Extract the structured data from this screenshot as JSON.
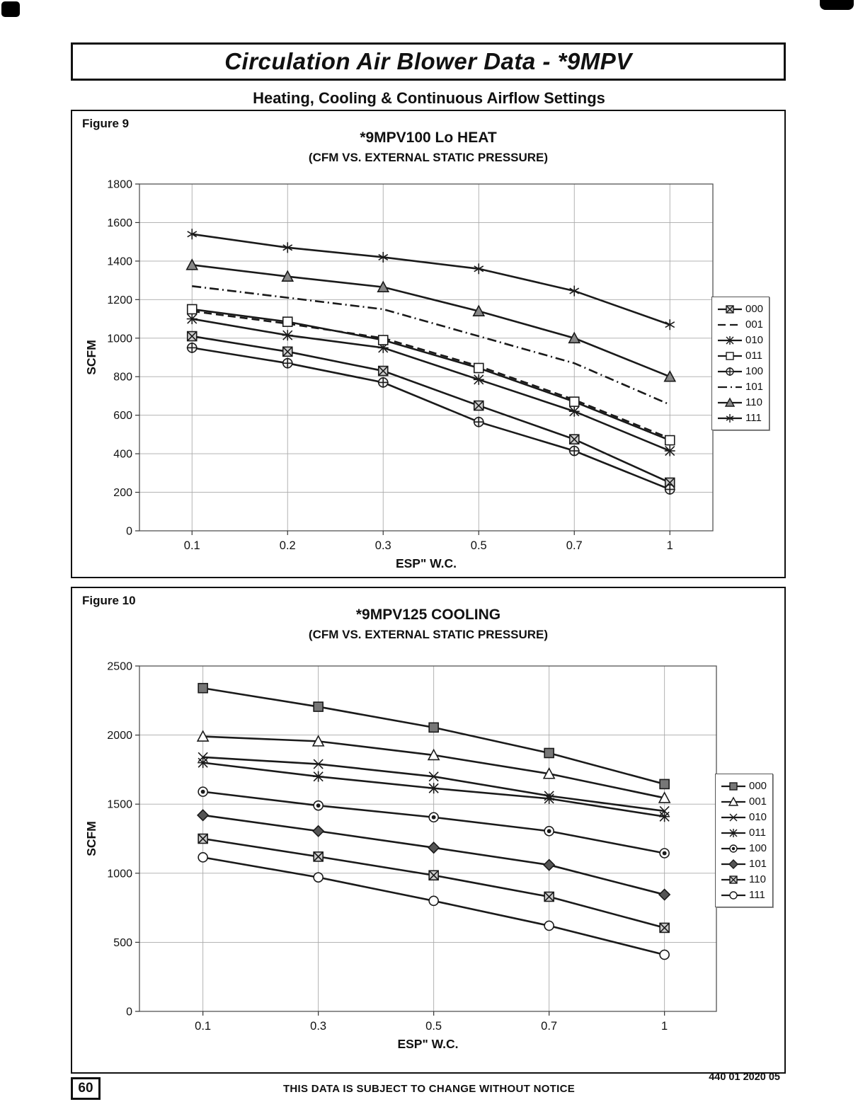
{
  "page": {
    "header": {
      "title": "Circulation Air Blower Data - *9MPV"
    },
    "subtitle": "Heating, Cooling & Continuous Airflow Settings",
    "footer": {
      "page_number": "60",
      "notice": "THIS DATA IS SUBJECT TO CHANGE WITHOUT NOTICE",
      "doc_code": "440 01 2020 05"
    }
  },
  "chart_data": [
    {
      "figure_label": "Figure 9",
      "type": "line",
      "title": "*9MPV100 Lo HEAT",
      "subtitle": "(CFM VS. EXTERNAL STATIC PRESSURE)",
      "xlabel": "ESP\" W.C.",
      "ylabel": "SCFM",
      "x_ticks": [
        "0.1",
        "0.2",
        "0.3",
        "0.5",
        "0.7",
        "1"
      ],
      "ylim": [
        0,
        1800
      ],
      "y_ticks": [
        0,
        200,
        400,
        600,
        800,
        1000,
        1200,
        1400,
        1600,
        1800
      ],
      "grid": true,
      "legend_position": "right",
      "line_color": "#1a1a1a",
      "series": [
        {
          "name": "000",
          "marker": "square-x",
          "line": "solid",
          "values": [
            1010,
            930,
            830,
            650,
            475,
            250
          ]
        },
        {
          "name": "001",
          "marker": "none",
          "line": "dashed",
          "values": [
            1140,
            1075,
            1000,
            855,
            680,
            480
          ]
        },
        {
          "name": "010",
          "marker": "star",
          "line": "solid",
          "values": [
            1100,
            1015,
            950,
            785,
            620,
            415
          ]
        },
        {
          "name": "011",
          "marker": "square",
          "line": "solid",
          "values": [
            1150,
            1085,
            990,
            845,
            670,
            470
          ]
        },
        {
          "name": "100",
          "marker": "circle-plus",
          "line": "solid",
          "values": [
            950,
            870,
            770,
            565,
            415,
            215
          ]
        },
        {
          "name": "101",
          "marker": "none",
          "line": "dashdot",
          "values": [
            1270,
            1210,
            1150,
            1010,
            870,
            655
          ]
        },
        {
          "name": "110",
          "marker": "triangle",
          "line": "solid",
          "values": [
            1380,
            1320,
            1265,
            1140,
            1000,
            800
          ]
        },
        {
          "name": "111",
          "marker": "asterisk",
          "line": "solid",
          "values": [
            1540,
            1470,
            1420,
            1360,
            1245,
            1070
          ]
        }
      ]
    },
    {
      "figure_label": "Figure 10",
      "type": "line",
      "title": "*9MPV125 COOLING",
      "subtitle": "(CFM VS. EXTERNAL STATIC PRESSURE)",
      "xlabel": "ESP\" W.C.",
      "ylabel": "SCFM",
      "x_ticks": [
        "0.1",
        "0.3",
        "0.5",
        "0.7",
        "1"
      ],
      "ylim": [
        0,
        2500
      ],
      "y_ticks": [
        0,
        500,
        1000,
        1500,
        2000,
        2500
      ],
      "grid": true,
      "legend_position": "right",
      "line_color": "#1a1a1a",
      "series": [
        {
          "name": "000",
          "marker": "square-filled",
          "line": "solid",
          "values": [
            2340,
            2205,
            2055,
            1870,
            1645
          ]
        },
        {
          "name": "001",
          "marker": "triangle-open",
          "line": "solid",
          "values": [
            1990,
            1955,
            1855,
            1720,
            1545
          ]
        },
        {
          "name": "010",
          "marker": "x",
          "line": "solid",
          "values": [
            1840,
            1790,
            1700,
            1560,
            1450
          ]
        },
        {
          "name": "011",
          "marker": "star",
          "line": "solid",
          "values": [
            1800,
            1700,
            1615,
            1540,
            1410
          ]
        },
        {
          "name": "100",
          "marker": "circle-dot",
          "line": "solid",
          "values": [
            1590,
            1490,
            1405,
            1305,
            1145
          ]
        },
        {
          "name": "101",
          "marker": "diamond",
          "line": "solid",
          "values": [
            1420,
            1305,
            1185,
            1060,
            845
          ]
        },
        {
          "name": "110",
          "marker": "square-x",
          "line": "solid",
          "values": [
            1250,
            1120,
            985,
            830,
            605
          ]
        },
        {
          "name": "111",
          "marker": "circle",
          "line": "solid",
          "values": [
            1115,
            970,
            800,
            620,
            410
          ]
        }
      ]
    }
  ]
}
